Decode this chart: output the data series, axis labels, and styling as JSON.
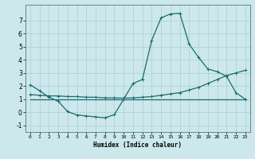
{
  "xlabel": "Humidex (Indice chaleur)",
  "bg_color": "#cce8ec",
  "grid_color": "#aacdd4",
  "line_color": "#1a6b6b",
  "xlim": [
    -0.5,
    23.5
  ],
  "ylim": [
    -1.5,
    8.2
  ],
  "yticks": [
    -1,
    0,
    1,
    2,
    3,
    4,
    5,
    6,
    7
  ],
  "xticks": [
    0,
    1,
    2,
    3,
    4,
    5,
    6,
    7,
    8,
    9,
    10,
    11,
    12,
    13,
    14,
    15,
    16,
    17,
    18,
    19,
    20,
    21,
    22,
    23
  ],
  "line1_x": [
    0,
    1,
    2,
    3,
    4,
    5,
    6,
    7,
    8,
    9,
    10,
    11,
    12,
    13,
    14,
    15,
    16,
    17,
    18,
    19,
    20,
    21,
    22,
    23
  ],
  "line1_y": [
    2.1,
    1.65,
    1.15,
    0.85,
    0.05,
    -0.2,
    -0.28,
    -0.35,
    -0.42,
    -0.18,
    1.0,
    2.2,
    2.5,
    5.5,
    7.2,
    7.5,
    7.55,
    5.2,
    4.2,
    3.3,
    3.1,
    2.75,
    1.5,
    1.0
  ],
  "line2_x": [
    0,
    1,
    2,
    3,
    4,
    5,
    6,
    7,
    8,
    9,
    10,
    11,
    12,
    13,
    14,
    15,
    16,
    17,
    18,
    19,
    20,
    21,
    22,
    23
  ],
  "line2_y": [
    1.35,
    1.3,
    1.25,
    1.25,
    1.2,
    1.2,
    1.15,
    1.15,
    1.1,
    1.1,
    1.08,
    1.1,
    1.15,
    1.2,
    1.3,
    1.4,
    1.5,
    1.7,
    1.9,
    2.2,
    2.5,
    2.8,
    3.0,
    3.2
  ],
  "line3_x": [
    0,
    23
  ],
  "line3_y": [
    1.0,
    1.0
  ],
  "marker": "+",
  "markersize": 3,
  "linewidth": 0.9
}
